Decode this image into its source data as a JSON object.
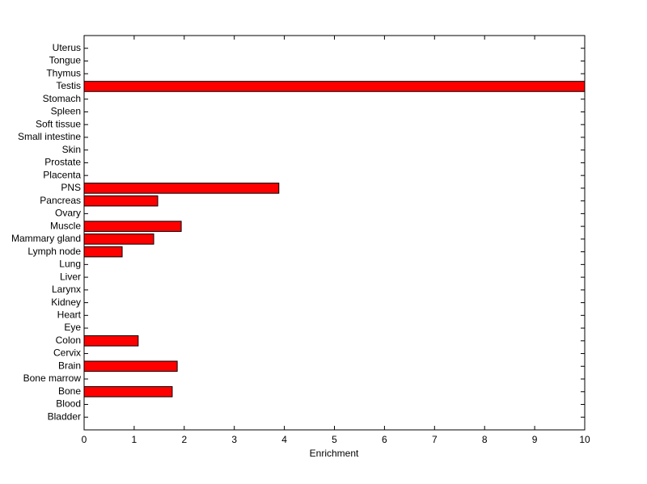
{
  "chart_data": {
    "type": "barh",
    "xlabel": "Enrichment",
    "categories": [
      "Bladder",
      "Blood",
      "Bone",
      "Bone marrow",
      "Brain",
      "Cervix",
      "Colon",
      "Eye",
      "Heart",
      "Kidney",
      "Larynx",
      "Liver",
      "Lung",
      "Lymph node",
      "Mammary gland",
      "Muscle",
      "Ovary",
      "Pancreas",
      "PNS",
      "Placenta",
      "Prostate",
      "Skin",
      "Small intestine",
      "Soft tissue",
      "Spleen",
      "Stomach",
      "Testis",
      "Thymus",
      "Tongue",
      "Uterus"
    ],
    "values": [
      0,
      0,
      1.76,
      0,
      1.86,
      0,
      1.08,
      0,
      0,
      0,
      0,
      0,
      0,
      0.76,
      1.39,
      1.94,
      0,
      1.47,
      3.89,
      0,
      0,
      0,
      0,
      0,
      0,
      0,
      10,
      0,
      0,
      0
    ],
    "color": "#ff0000",
    "xlim": [
      0,
      10
    ],
    "xticks": [
      0,
      1,
      2,
      3,
      4,
      5,
      6,
      7,
      8,
      9,
      10
    ],
    "grid": false
  }
}
